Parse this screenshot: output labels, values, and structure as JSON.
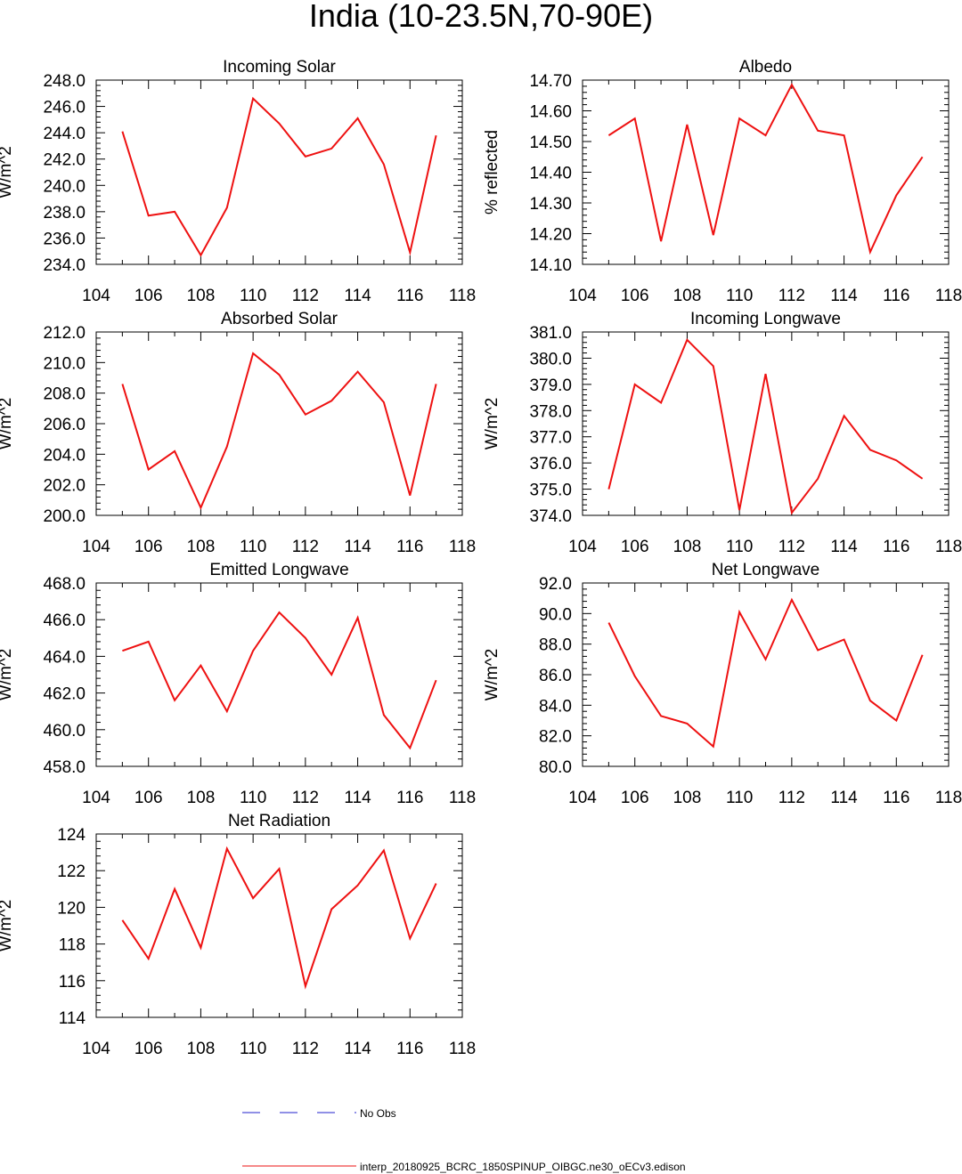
{
  "figure_title": "India (10-23.5N,70-90E)",
  "colors": {
    "model_line": "#ee1111",
    "obs_line": "#2222cc",
    "axis": "#000000"
  },
  "legend": [
    {
      "label": "No Obs",
      "style": "dashed",
      "color": "#2222cc"
    },
    {
      "label": "interp_20180925_BCRC_1850SPINUP_OIBGC.ne30_oECv3.edison",
      "style": "solid",
      "color": "#ee1111"
    }
  ],
  "chart_data": [
    {
      "type": "line",
      "title": "Incoming Solar",
      "ylabel": "W/m^2",
      "xlim": [
        104,
        118
      ],
      "ylim": [
        234,
        248
      ],
      "yticks": [
        "234.0",
        "236.0",
        "238.0",
        "240.0",
        "242.0",
        "244.0",
        "246.0",
        "248.0"
      ],
      "ystep": 2,
      "x": [
        105,
        106,
        107,
        108,
        109,
        110,
        111,
        112,
        113,
        114,
        115,
        116,
        117
      ],
      "series": [
        {
          "name": "interp_20180925_BCRC_1850SPINUP_OIBGC.ne30_oECv3.edison",
          "values": [
            244.1,
            237.7,
            238.0,
            234.7,
            238.3,
            246.6,
            244.7,
            242.2,
            242.8,
            245.1,
            241.6,
            234.9,
            243.8
          ]
        }
      ]
    },
    {
      "type": "line",
      "title": "Albedo",
      "ylabel": "% reflected",
      "xlim": [
        104,
        118
      ],
      "ylim": [
        14.1,
        14.7
      ],
      "yticks": [
        "14.10",
        "14.20",
        "14.30",
        "14.40",
        "14.50",
        "14.60",
        "14.70"
      ],
      "ystep": 0.1,
      "x": [
        105,
        106,
        107,
        108,
        109,
        110,
        111,
        112,
        113,
        114,
        115,
        116,
        117
      ],
      "series": [
        {
          "name": "interp_20180925_BCRC_1850SPINUP_OIBGC.ne30_oECv3.edison",
          "values": [
            14.52,
            14.575,
            14.175,
            14.555,
            14.195,
            14.575,
            14.52,
            14.685,
            14.535,
            14.52,
            14.14,
            14.325,
            14.45
          ]
        }
      ]
    },
    {
      "type": "line",
      "title": "Absorbed Solar",
      "ylabel": "W/m^2",
      "xlim": [
        104,
        118
      ],
      "ylim": [
        200,
        212
      ],
      "yticks": [
        "200.0",
        "202.0",
        "204.0",
        "206.0",
        "208.0",
        "210.0",
        "212.0"
      ],
      "ystep": 2,
      "x": [
        105,
        106,
        107,
        108,
        109,
        110,
        111,
        112,
        113,
        114,
        115,
        116,
        117
      ],
      "series": [
        {
          "name": "interp_20180925_BCRC_1850SPINUP_OIBGC.ne30_oECv3.edison",
          "values": [
            208.6,
            203.0,
            204.2,
            200.5,
            204.5,
            210.6,
            209.2,
            206.6,
            207.5,
            209.4,
            207.4,
            201.3,
            208.6
          ]
        }
      ]
    },
    {
      "type": "line",
      "title": "Incoming Longwave",
      "ylabel": "W/m^2",
      "xlim": [
        104,
        118
      ],
      "ylim": [
        374,
        381
      ],
      "yticks": [
        "374.0",
        "375.0",
        "376.0",
        "377.0",
        "378.0",
        "379.0",
        "380.0",
        "381.0"
      ],
      "ystep": 1,
      "x": [
        105,
        106,
        107,
        108,
        109,
        110,
        111,
        112,
        113,
        114,
        115,
        116,
        117
      ],
      "series": [
        {
          "name": "interp_20180925_BCRC_1850SPINUP_OIBGC.ne30_oECv3.edison",
          "values": [
            375.0,
            379.0,
            378.3,
            380.7,
            379.7,
            374.2,
            379.4,
            374.1,
            375.4,
            377.8,
            376.5,
            376.1,
            375.4
          ]
        }
      ]
    },
    {
      "type": "line",
      "title": "Emitted Longwave",
      "ylabel": "W/m^2",
      "xlim": [
        104,
        118
      ],
      "ylim": [
        458,
        468
      ],
      "yticks": [
        "458.0",
        "460.0",
        "462.0",
        "464.0",
        "466.0",
        "468.0"
      ],
      "ystep": 2,
      "x": [
        105,
        106,
        107,
        108,
        109,
        110,
        111,
        112,
        113,
        114,
        115,
        116,
        117
      ],
      "series": [
        {
          "name": "interp_20180925_BCRC_1850SPINUP_OIBGC.ne30_oECv3.edison",
          "values": [
            464.3,
            464.8,
            461.6,
            463.5,
            461.0,
            464.3,
            466.4,
            465.0,
            463.0,
            466.1,
            460.8,
            459.0,
            462.7
          ]
        }
      ]
    },
    {
      "type": "line",
      "title": "Net Longwave",
      "ylabel": "W/m^2",
      "xlim": [
        104,
        118
      ],
      "ylim": [
        80,
        92
      ],
      "yticks": [
        "80.0",
        "82.0",
        "84.0",
        "86.0",
        "88.0",
        "90.0",
        "92.0"
      ],
      "ystep": 2,
      "x": [
        105,
        106,
        107,
        108,
        109,
        110,
        111,
        112,
        113,
        114,
        115,
        116,
        117
      ],
      "series": [
        {
          "name": "interp_20180925_BCRC_1850SPINUP_OIBGC.ne30_oECv3.edison",
          "values": [
            89.4,
            85.9,
            83.3,
            82.8,
            81.3,
            90.1,
            87.0,
            90.9,
            87.6,
            88.3,
            84.3,
            83.0,
            87.3
          ]
        }
      ]
    },
    {
      "type": "line",
      "title": "Net Radiation",
      "ylabel": "W/m^2",
      "xlim": [
        104,
        118
      ],
      "ylim": [
        114,
        124
      ],
      "yticks": [
        "114",
        "116",
        "118",
        "120",
        "122",
        "124"
      ],
      "ystep": 2,
      "x": [
        105,
        106,
        107,
        108,
        109,
        110,
        111,
        112,
        113,
        114,
        115,
        116,
        117
      ],
      "series": [
        {
          "name": "interp_20180925_BCRC_1850SPINUP_OIBGC.ne30_oECv3.edison",
          "values": [
            119.3,
            117.2,
            121.0,
            117.8,
            123.2,
            120.5,
            122.1,
            115.7,
            119.9,
            121.2,
            123.1,
            118.3,
            121.3
          ]
        }
      ]
    }
  ],
  "xticks": [
    "104",
    "106",
    "108",
    "110",
    "112",
    "114",
    "116",
    "118"
  ]
}
